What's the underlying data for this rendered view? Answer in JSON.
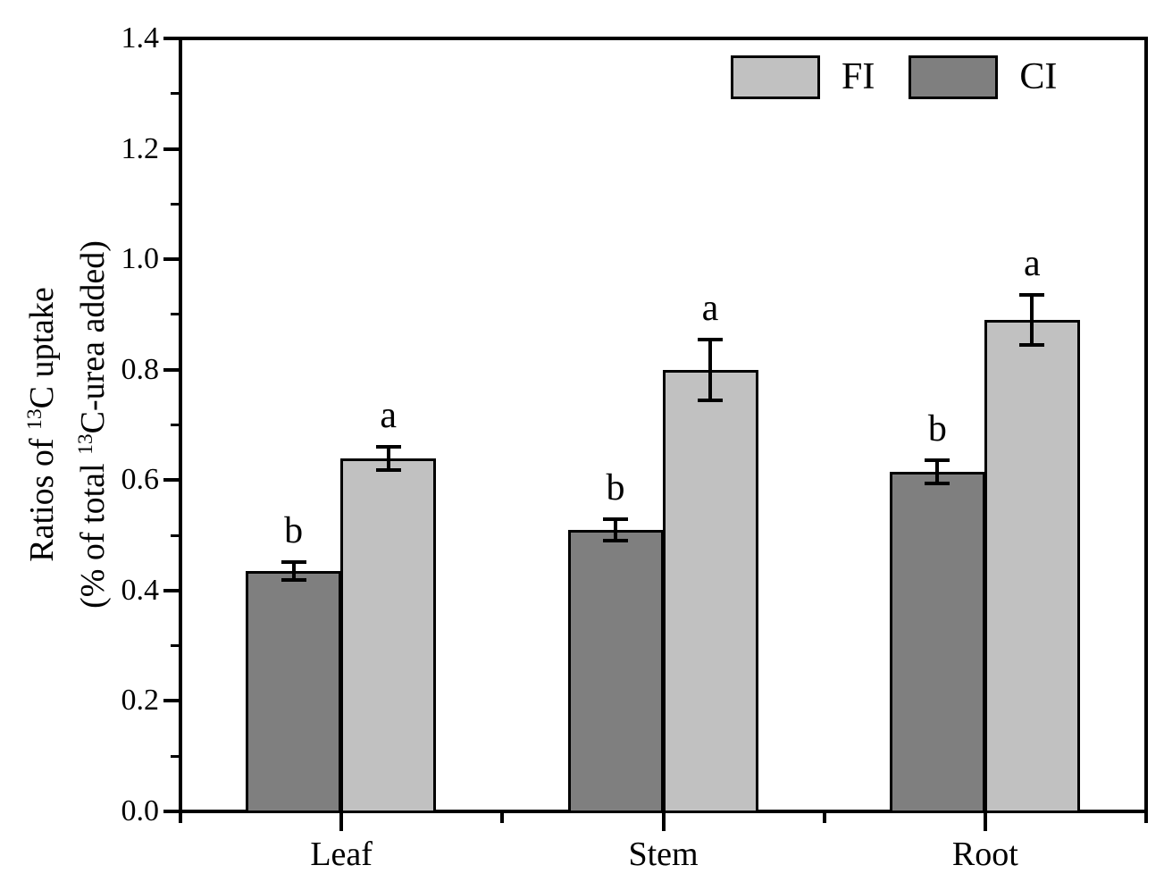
{
  "figure": {
    "background": "#ffffff",
    "y_axis_title": {
      "line1": {
        "pre": "Ratios of ",
        "sup": "13",
        "post": "C uptake"
      },
      "line2": {
        "pre": "(% of total ",
        "sup": "13",
        "post": "C-urea added)"
      }
    }
  },
  "chart_data": {
    "type": "bar",
    "title": "",
    "xlabel": "",
    "ylabel": "Ratios of 13C uptake (% of total 13C-urea added)",
    "categories": [
      "Leaf",
      "Stem",
      "Root"
    ],
    "series": [
      {
        "name": "CI",
        "color": "#7f7f7f",
        "values": [
          0.435,
          0.51,
          0.615
        ],
        "errors": [
          0.016,
          0.02,
          0.021
        ],
        "sig_letters": [
          "b",
          "b",
          "b"
        ]
      },
      {
        "name": "FI",
        "color": "#c1c1c1",
        "values": [
          0.64,
          0.8,
          0.89
        ],
        "errors": [
          0.021,
          0.055,
          0.045
        ],
        "sig_letters": [
          "a",
          "a",
          "a"
        ]
      }
    ],
    "legend_order": [
      "FI",
      "CI"
    ],
    "legend_position": "top-right-inside",
    "ylim": [
      0,
      1.4
    ],
    "yticks": [
      "0.0",
      "0.2",
      "0.4",
      "0.6",
      "0.8",
      "1.0",
      "1.2",
      "1.4"
    ],
    "ytick_major_step": 0.2,
    "ytick_minor_step": 0.1,
    "grid": false,
    "bar_edge_color": "#000000",
    "error_bar_color": "#000000",
    "axis_color": "#000000"
  }
}
